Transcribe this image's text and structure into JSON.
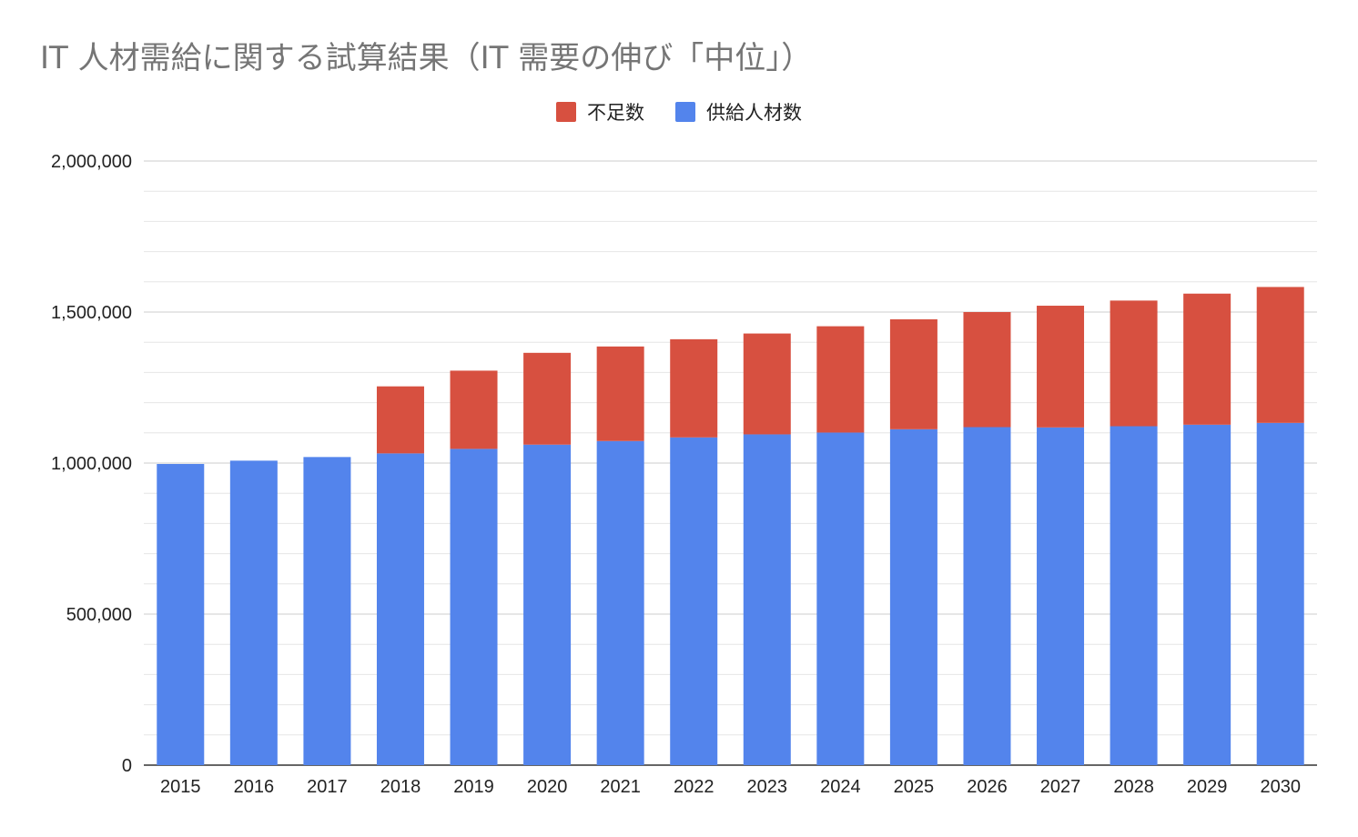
{
  "title": "IT 人材需給に関する試算結果（IT 需要の伸び「中位」）",
  "chart_data": {
    "type": "bar",
    "stacked": true,
    "title": "IT 人材需給に関する試算結果（IT 需要の伸び「中位」）",
    "categories": [
      "2015",
      "2016",
      "2017",
      "2018",
      "2019",
      "2020",
      "2021",
      "2022",
      "2023",
      "2024",
      "2025",
      "2026",
      "2027",
      "2028",
      "2029",
      "2030"
    ],
    "series": [
      {
        "name": "供給人材数",
        "color": "#5384ec",
        "values": [
          997000,
          1008000,
          1020000,
          1032000,
          1047000,
          1061000,
          1073000,
          1085000,
          1095000,
          1101000,
          1112000,
          1119000,
          1118000,
          1122000,
          1127000,
          1133000
        ]
      },
      {
        "name": "不足数",
        "color": "#d75040",
        "values": [
          0,
          0,
          0,
          222000,
          259000,
          304000,
          313000,
          325000,
          334000,
          352000,
          364000,
          381000,
          403000,
          416000,
          434000,
          450000
        ]
      }
    ],
    "legend_order": [
      "不足数",
      "供給人材数"
    ],
    "legend_position": "top",
    "ylim": [
      0,
      2000000
    ],
    "yticks": [
      0,
      500000,
      1000000,
      1500000,
      2000000
    ],
    "ytick_labels": [
      "0",
      "500,000",
      "1,000,000",
      "1,500,000",
      "2,000,000"
    ],
    "minor_gridlines": true,
    "xlabel": "",
    "ylabel": ""
  }
}
